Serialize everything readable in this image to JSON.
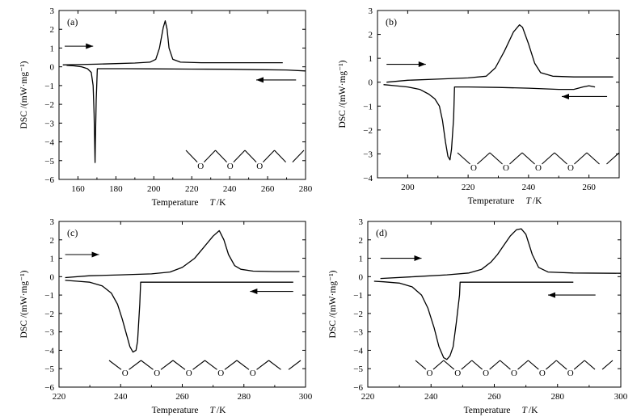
{
  "chart_data": [
    {
      "type": "line",
      "panel_label": "(a)",
      "ylabel": "DSC /(mW·mg⁻¹)",
      "xlabel_main": "Temperature",
      "xlabel_symbol": "T",
      "xlabel_unit": "/K",
      "xlim": [
        150,
        280
      ],
      "ylim": [
        -6,
        3
      ],
      "xticks": [
        160,
        180,
        200,
        220,
        240,
        260,
        280
      ],
      "yticks": [
        -6,
        -5,
        -4,
        -3,
        -2,
        -1,
        0,
        1,
        2,
        3
      ],
      "molecule_oxygens": [
        "O",
        "O",
        "O"
      ],
      "series": [
        {
          "name": "heating",
          "x": [
            152,
            160,
            170,
            180,
            190,
            198,
            201,
            203,
            205,
            206,
            207,
            208,
            210,
            214,
            225,
            240,
            255,
            268
          ],
          "y": [
            0.1,
            0.12,
            0.14,
            0.17,
            0.2,
            0.25,
            0.4,
            1.0,
            2.1,
            2.45,
            2.0,
            1.0,
            0.4,
            0.25,
            0.22,
            0.22,
            0.22,
            0.22
          ]
        },
        {
          "name": "cooling",
          "x": [
            280,
            270,
            255,
            240,
            220,
            200,
            185,
            172,
            170.2,
            169.6,
            169.2,
            169,
            168.5,
            168,
            167,
            165,
            162,
            158,
            154
          ],
          "y": [
            -0.22,
            -0.17,
            -0.15,
            -0.13,
            -0.12,
            -0.11,
            -0.1,
            -0.1,
            -0.1,
            -1.8,
            -4.0,
            -5.1,
            -2.5,
            -1.0,
            -0.3,
            -0.1,
            0.0,
            0.05,
            0.08
          ]
        }
      ],
      "arrows": [
        {
          "direction": "right",
          "x1": 153,
          "x2": 168,
          "y": 1.1
        },
        {
          "direction": "left",
          "x1": 275,
          "x2": 254,
          "y": -0.7
        }
      ]
    },
    {
      "type": "line",
      "panel_label": "(b)",
      "ylabel": "DSC /(mW·mg⁻¹)",
      "xlabel_main": "Temperature",
      "xlabel_symbol": "T",
      "xlabel_unit": "/K",
      "xlim": [
        190,
        270
      ],
      "ylim": [
        -4,
        3
      ],
      "xticks": [
        200,
        220,
        240,
        260
      ],
      "yticks": [
        -4,
        -3,
        -2,
        -1,
        0,
        1,
        2,
        3
      ],
      "molecule_oxygens": [
        "O",
        "O",
        "O",
        "O"
      ],
      "series": [
        {
          "name": "heating",
          "x": [
            193,
            200,
            210,
            220,
            226,
            229,
            232,
            235,
            237,
            238,
            240,
            242,
            244,
            248,
            255,
            263,
            268
          ],
          "y": [
            0.0,
            0.08,
            0.13,
            0.18,
            0.25,
            0.6,
            1.3,
            2.1,
            2.4,
            2.3,
            1.6,
            0.8,
            0.4,
            0.25,
            0.22,
            0.22,
            0.22
          ]
        },
        {
          "name": "cooling",
          "x": [
            262,
            260,
            258,
            255,
            250,
            240,
            230,
            220,
            215.5,
            215.2,
            214.5,
            214,
            213.3,
            212.5,
            211.5,
            210.5,
            209,
            207,
            204,
            200,
            196,
            192
          ],
          "y": [
            -0.2,
            -0.15,
            -0.2,
            -0.3,
            -0.3,
            -0.25,
            -0.22,
            -0.2,
            -0.2,
            -1.5,
            -2.8,
            -3.25,
            -3.1,
            -2.5,
            -1.6,
            -1.0,
            -0.7,
            -0.5,
            -0.3,
            -0.2,
            -0.15,
            -0.1
          ]
        }
      ],
      "arrows": [
        {
          "direction": "right",
          "x1": 193,
          "x2": 206,
          "y": 0.75
        },
        {
          "direction": "left",
          "x1": 266,
          "x2": 251,
          "y": -0.6
        }
      ]
    },
    {
      "type": "line",
      "panel_label": "(c)",
      "ylabel": "DSC /(mW·mg⁻¹)",
      "xlabel_main": "Temperature",
      "xlabel_symbol": "T",
      "xlabel_unit": "/K",
      "xlim": [
        220,
        300
      ],
      "ylim": [
        -6,
        3
      ],
      "xticks": [
        220,
        240,
        260,
        280,
        300
      ],
      "yticks": [
        -6,
        -5,
        -4,
        -3,
        -2,
        -1,
        0,
        1,
        2,
        3
      ],
      "molecule_oxygens": [
        "O",
        "O",
        "O",
        "O",
        "O"
      ],
      "series": [
        {
          "name": "heating",
          "x": [
            222,
            230,
            240,
            250,
            256,
            260,
            264,
            267,
            270,
            272,
            273.5,
            275,
            277,
            279,
            283,
            290,
            298
          ],
          "y": [
            -0.05,
            0.05,
            0.1,
            0.15,
            0.25,
            0.5,
            1.0,
            1.6,
            2.2,
            2.5,
            2.0,
            1.2,
            0.6,
            0.4,
            0.3,
            0.28,
            0.28
          ]
        },
        {
          "name": "cooling",
          "x": [
            296,
            285,
            270,
            260,
            250,
            246.5,
            246.2,
            245.5,
            245,
            244,
            243,
            242,
            240.5,
            239,
            237,
            234,
            230,
            226,
            222
          ],
          "y": [
            -0.3,
            -0.3,
            -0.3,
            -0.3,
            -0.3,
            -0.3,
            -1.5,
            -3.5,
            -4.0,
            -4.1,
            -3.8,
            -3.2,
            -2.3,
            -1.5,
            -0.9,
            -0.5,
            -0.3,
            -0.25,
            -0.2
          ]
        }
      ],
      "arrows": [
        {
          "direction": "right",
          "x1": 222,
          "x2": 233,
          "y": 1.2
        },
        {
          "direction": "left",
          "x1": 296,
          "x2": 282,
          "y": -0.8
        }
      ]
    },
    {
      "type": "line",
      "panel_label": "(d)",
      "ylabel": "DSC /(mW·mg⁻¹)",
      "xlabel_main": "Temperature",
      "xlabel_symbol": "T",
      "xlabel_unit": "/K",
      "xlim": [
        220,
        300
      ],
      "ylim": [
        -6,
        3
      ],
      "xticks": [
        220,
        240,
        260,
        280,
        300
      ],
      "yticks": [
        -6,
        -5,
        -4,
        -3,
        -2,
        -1,
        0,
        1,
        2,
        3
      ],
      "molecule_oxygens": [
        "O",
        "O",
        "O",
        "O",
        "O",
        "O"
      ],
      "series": [
        {
          "name": "heating",
          "x": [
            224,
            235,
            245,
            252,
            256,
            259,
            261,
            263,
            265,
            267,
            268.5,
            270,
            272,
            274,
            277,
            285,
            300
          ],
          "y": [
            -0.1,
            0.0,
            0.1,
            0.2,
            0.4,
            0.8,
            1.2,
            1.7,
            2.2,
            2.55,
            2.6,
            2.3,
            1.2,
            0.5,
            0.25,
            0.2,
            0.18
          ]
        },
        {
          "name": "cooling",
          "x": [
            285,
            270,
            260,
            254,
            250,
            249.2,
            249,
            248,
            247,
            246,
            245,
            244,
            242.5,
            241,
            239,
            237,
            234,
            230,
            225,
            222
          ],
          "y": [
            -0.3,
            -0.3,
            -0.3,
            -0.3,
            -0.3,
            -0.3,
            -1.0,
            -2.5,
            -3.8,
            -4.3,
            -4.5,
            -4.4,
            -3.8,
            -2.8,
            -1.7,
            -1.0,
            -0.55,
            -0.35,
            -0.28,
            -0.25
          ]
        }
      ],
      "arrows": [
        {
          "direction": "right",
          "x1": 224,
          "x2": 237,
          "y": 1.0
        },
        {
          "direction": "left",
          "x1": 292,
          "x2": 277,
          "y": -1.0
        }
      ]
    }
  ]
}
